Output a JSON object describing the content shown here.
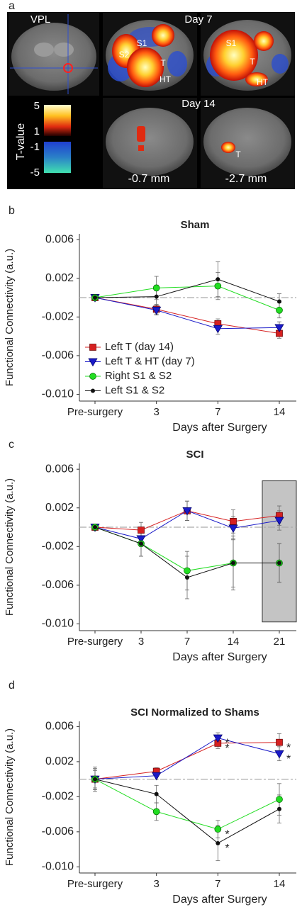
{
  "panel_a": {
    "panel": "a",
    "headers": [
      "VPL",
      "Day 7",
      "Day 14"
    ],
    "region_labels": [
      "S1",
      "S2",
      "T",
      "HT",
      "S1",
      "T",
      "HT",
      "T"
    ],
    "colorbar": {
      "title": "T-value",
      "ticks": [
        5,
        1,
        -1,
        -5
      ]
    },
    "depths": [
      "-0.7 mm",
      "-2.7 mm"
    ]
  },
  "chart_data": [
    {
      "type": "line",
      "panel": "b",
      "title": "Sham",
      "x_label": "Days after Surgery",
      "y_label": "Functional Connectivity (a.u.)",
      "categories": [
        "Pre-surgery",
        "3",
        "7",
        "14"
      ],
      "ylim": [
        -0.0107,
        0.0066
      ],
      "yticks": [
        0.006,
        0.002,
        -0.002,
        -0.006,
        {
          "value": -0.01,
          "label": "-0.010"
        }
      ],
      "hline": 0,
      "legend": "lower left",
      "series": [
        {
          "name": "Left T (day 14)",
          "color": "#d62020",
          "marker": "square",
          "values": [
            0,
            -0.0012,
            -0.0027,
            -0.0037
          ],
          "errors": [
            0,
            0.0005,
            0.0005,
            0.0005
          ]
        },
        {
          "name": "Left T & HT (day 7)",
          "color": "#1a1ac8",
          "marker": "triangle-down",
          "values": [
            0,
            -0.0013,
            -0.0032,
            -0.0031
          ],
          "errors": [
            0,
            0.0005,
            0.0006,
            0.0006
          ]
        },
        {
          "name": "Right S1 & S2",
          "color": "#22dd22",
          "marker": "circle",
          "values": [
            0,
            0.001,
            0.0012,
            -0.0013
          ],
          "errors": [
            0,
            0.0012,
            0.0014,
            0.0008
          ]
        },
        {
          "name": "Left S1 & S2",
          "color": "#111111",
          "marker": "dot",
          "values": [
            0,
            0.0001,
            0.0019,
            -0.0004
          ],
          "errors": [
            0,
            0.0012,
            0.0018,
            0.0008
          ]
        }
      ]
    },
    {
      "type": "line",
      "panel": "c",
      "title": "SCI",
      "x_label": "Days after Surgery",
      "y_label": "Functional Connectivity (a.u.)",
      "categories": [
        "Pre-surgery",
        "3",
        "7",
        "14",
        "21"
      ],
      "ylim": [
        -0.0107,
        0.0066
      ],
      "yticks": [
        0.006,
        0.002,
        -0.002,
        -0.006,
        {
          "value": -0.01,
          "label": "-0.010"
        }
      ],
      "hline": 0,
      "highlight": {
        "index": 4,
        "range": [
          -0.0098,
          0.0048
        ]
      },
      "series": [
        {
          "color": "#d62020",
          "marker": "square",
          "values": [
            0,
            -0.0003,
            0.0017,
            0.0006,
            0.0012
          ],
          "errors": [
            0,
            0.0008,
            0.001,
            0.0012,
            0.001
          ]
        },
        {
          "color": "#1a1ac8",
          "marker": "triangle-down",
          "values": [
            0,
            -0.0012,
            0.0017,
            -0.0001,
            0.0007
          ],
          "errors": [
            0,
            0.0008,
            0.001,
            0.0012,
            0.001
          ]
        },
        {
          "color": "#22dd22",
          "marker": "circle",
          "values": [
            0,
            -0.0017,
            -0.0045,
            -0.0037,
            -0.0037
          ],
          "errors": [
            0,
            0.0013,
            0.002,
            0.0025,
            0.002
          ]
        },
        {
          "color": "#111111",
          "marker": "dot",
          "values": [
            0,
            -0.0017,
            -0.0052,
            -0.0037,
            -0.0037
          ],
          "errors": [
            0,
            0.0013,
            0.0022,
            0.0028,
            0.002
          ]
        }
      ]
    },
    {
      "type": "line",
      "panel": "d",
      "title": "SCI Normalized to Shams",
      "x_label": "Days after Surgery",
      "y_label": "Functional Connectivity (a.u.)",
      "categories": [
        "Pre-surgery",
        "3",
        "7",
        "14"
      ],
      "ylim": [
        -0.0107,
        0.0066
      ],
      "yticks": [
        0.006,
        0.002,
        -0.002,
        -0.006,
        {
          "value": -0.01,
          "label": "-0.010"
        }
      ],
      "hline": 0,
      "annotations": [
        {
          "text": "*",
          "series": 1,
          "index": 2
        },
        {
          "text": "*",
          "series": 0,
          "index": 2
        },
        {
          "text": "*",
          "series": 2,
          "index": 2
        },
        {
          "text": "*",
          "series": 3,
          "index": 2
        },
        {
          "text": "*",
          "series": 0,
          "index": 3
        },
        {
          "text": "*",
          "series": 1,
          "index": 3
        }
      ],
      "series": [
        {
          "color": "#d62020",
          "marker": "square",
          "values": [
            0,
            0.0009,
            0.0041,
            0.0042
          ],
          "errors": [
            0.0014,
            0.0004,
            0.0006,
            0.001
          ]
        },
        {
          "color": "#1a1ac8",
          "marker": "triangle-down",
          "values": [
            0,
            0.0004,
            0.0047,
            0.0029
          ],
          "errors": [
            0.001,
            0.0004,
            0.0006,
            0.0008
          ]
        },
        {
          "color": "#22dd22",
          "marker": "circle",
          "values": [
            0,
            -0.0037,
            -0.0057,
            -0.0023
          ],
          "errors": [
            0.0012,
            0.001,
            0.001,
            0.0018
          ]
        },
        {
          "color": "#111111",
          "marker": "dot",
          "values": [
            0,
            -0.0017,
            -0.0073,
            -0.0034
          ],
          "errors": [
            0.0012,
            0.001,
            0.002,
            0.0016
          ]
        }
      ]
    }
  ]
}
